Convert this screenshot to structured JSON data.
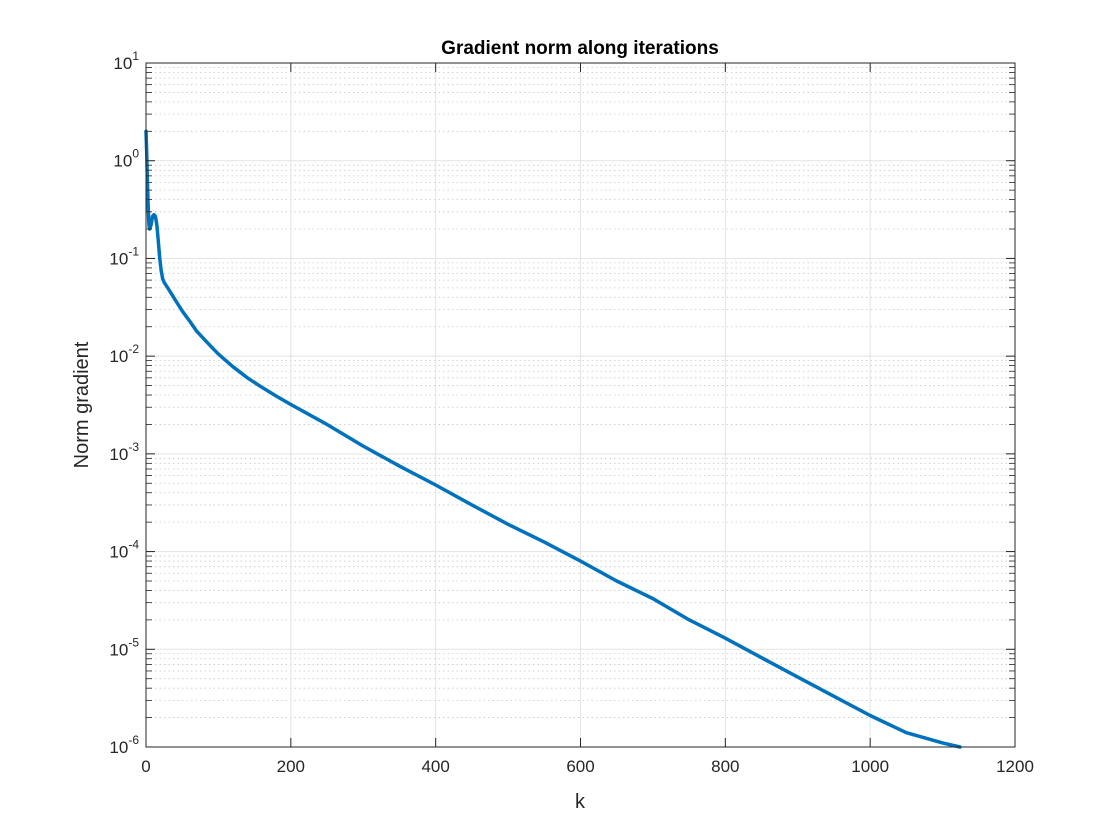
{
  "chart_data": {
    "type": "line",
    "title": "Gradient norm along iterations",
    "xlabel": "k",
    "ylabel": "Norm gradient",
    "xlim": [
      0,
      1200
    ],
    "ylim": [
      1e-06,
      10
    ],
    "yscale": "log",
    "grid": true,
    "minor_grid": true,
    "line_color": "#0072BD",
    "xticks": [
      0,
      200,
      400,
      600,
      800,
      1000,
      1200
    ],
    "xtick_labels": [
      "0",
      "200",
      "400",
      "600",
      "800",
      "1000",
      "1200"
    ],
    "yticks": [
      1e-06,
      1e-05,
      0.0001,
      0.001,
      0.01,
      0.1,
      1,
      10
    ],
    "ytick_labels": [
      {
        "base": "10",
        "exp": "-6"
      },
      {
        "base": "10",
        "exp": "-5"
      },
      {
        "base": "10",
        "exp": "-4"
      },
      {
        "base": "10",
        "exp": "-3"
      },
      {
        "base": "10",
        "exp": "-2"
      },
      {
        "base": "10",
        "exp": "-1"
      },
      {
        "base": "10",
        "exp": "0"
      },
      {
        "base": "10",
        "exp": "1"
      }
    ],
    "series": [
      {
        "x": [
          0,
          1,
          2,
          3,
          4,
          5,
          7,
          9,
          11,
          13,
          15,
          17,
          19,
          21,
          23,
          25,
          30,
          40,
          50,
          60,
          70,
          80,
          90,
          100,
          120,
          140,
          160,
          180,
          200,
          250,
          300,
          350,
          400,
          450,
          500,
          550,
          600,
          650,
          700,
          750,
          800,
          850,
          900,
          950,
          1000,
          1050,
          1100,
          1124
        ],
        "y": [
          2.0,
          1.2,
          0.6,
          0.35,
          0.22,
          0.2,
          0.22,
          0.27,
          0.28,
          0.27,
          0.22,
          0.15,
          0.1,
          0.075,
          0.062,
          0.057,
          0.05,
          0.038,
          0.029,
          0.023,
          0.018,
          0.015,
          0.0125,
          0.0105,
          0.0078,
          0.006,
          0.0048,
          0.0039,
          0.0032,
          0.002,
          0.0012,
          0.00075,
          0.00048,
          0.0003,
          0.00019,
          0.000125,
          8e-05,
          5e-05,
          3.3e-05,
          2e-05,
          1.3e-05,
          8.2e-06,
          5.2e-06,
          3.3e-06,
          2.1e-06,
          1.4e-06,
          1.1e-06,
          1e-06
        ]
      }
    ]
  }
}
